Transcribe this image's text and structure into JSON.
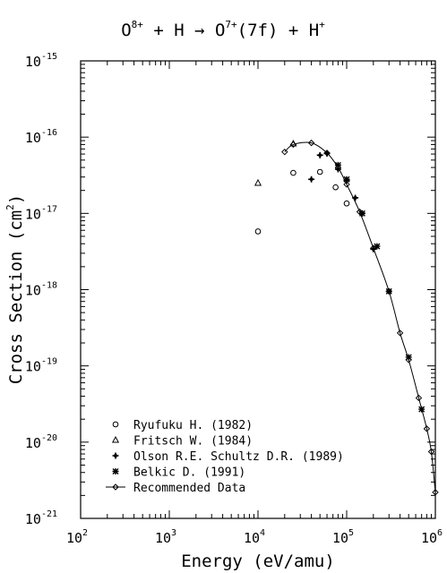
{
  "chart_data": {
    "type": "scatter",
    "title_parts": {
      "a": "O",
      "a_sup": "8+",
      "b": " + H → O",
      "b_sup": "7+",
      "c": "(7f) + H",
      "c_sup": "+"
    },
    "xlabel": "Energy (eV/amu)",
    "ylabel_parts": {
      "main": "Cross Section (cm",
      "sup": "2",
      "end": ")"
    },
    "x_scale": "log",
    "y_scale": "log",
    "xlim": [
      100,
      1000000
    ],
    "ylim": [
      1e-21,
      1e-15
    ],
    "x_tick_labels": [
      {
        "base": "10",
        "exp": "2",
        "value": 100
      },
      {
        "base": "10",
        "exp": "3",
        "value": 1000
      },
      {
        "base": "10",
        "exp": "4",
        "value": 10000
      },
      {
        "base": "10",
        "exp": "5",
        "value": 100000
      },
      {
        "base": "10",
        "exp": "6",
        "value": 1000000
      }
    ],
    "y_tick_labels": [
      {
        "base": "10",
        "exp": "-15",
        "value": 1e-15
      },
      {
        "base": "10",
        "exp": "-16",
        "value": 1e-16
      },
      {
        "base": "10",
        "exp": "-17",
        "value": 1e-17
      },
      {
        "base": "10",
        "exp": "-18",
        "value": 1e-18
      },
      {
        "base": "10",
        "exp": "-19",
        "value": 1e-19
      },
      {
        "base": "10",
        "exp": "-20",
        "value": 1e-20
      },
      {
        "base": "10",
        "exp": "-21",
        "value": 1e-21
      }
    ],
    "legend_position": "bottom-left",
    "series": [
      {
        "name": "Ryufuku H. (1982)",
        "marker": "circle",
        "points": [
          [
            10000,
            5.8e-18
          ],
          [
            25000,
            3.4e-17
          ],
          [
            50000,
            3.5e-17
          ],
          [
            75000,
            2.2e-17
          ],
          [
            100000,
            1.35e-17
          ]
        ]
      },
      {
        "name": "Fritsch W. (1984)",
        "marker": "triangle",
        "points": [
          [
            10000,
            2.5e-17
          ],
          [
            25000,
            8.2e-17
          ]
        ]
      },
      {
        "name": "Olson R.E. Schultz D.R. (1989)",
        "marker": "cross-circle",
        "points": [
          [
            40000,
            2.8e-17
          ],
          [
            50000,
            5.8e-17
          ],
          [
            60000,
            6.1e-17
          ],
          [
            80000,
            3.8e-17
          ],
          [
            100000,
            2.7e-17
          ],
          [
            125000,
            1.6e-17
          ],
          [
            150000,
            1e-17
          ],
          [
            200000,
            3.4e-18
          ]
        ]
      },
      {
        "name": "Belkic D. (1991)",
        "marker": "star",
        "points": [
          [
            80000,
            4.3e-17
          ],
          [
            100000,
            2.8e-17
          ],
          [
            150000,
            1e-17
          ],
          [
            220000,
            3.7e-18
          ],
          [
            300000,
            9.5e-19
          ],
          [
            500000,
            1.3e-19
          ],
          [
            700000,
            2.7e-20
          ]
        ]
      },
      {
        "name": "Recommended Data",
        "marker": "diamond-line",
        "points": [
          [
            20000,
            6.4e-17
          ],
          [
            25000,
            8e-17
          ],
          [
            40000,
            8.4e-17
          ],
          [
            60000,
            6.2e-17
          ],
          [
            80000,
            4e-17
          ],
          [
            100000,
            2.4e-17
          ],
          [
            140000,
            1.05e-17
          ],
          [
            200000,
            3.5e-18
          ],
          [
            300000,
            9.5e-19
          ],
          [
            400000,
            2.7e-19
          ],
          [
            500000,
            1.2e-19
          ],
          [
            650000,
            3.8e-20
          ],
          [
            800000,
            1.5e-20
          ],
          [
            900000,
            7.5e-21
          ],
          [
            1000000,
            2.2e-21
          ]
        ]
      }
    ]
  }
}
